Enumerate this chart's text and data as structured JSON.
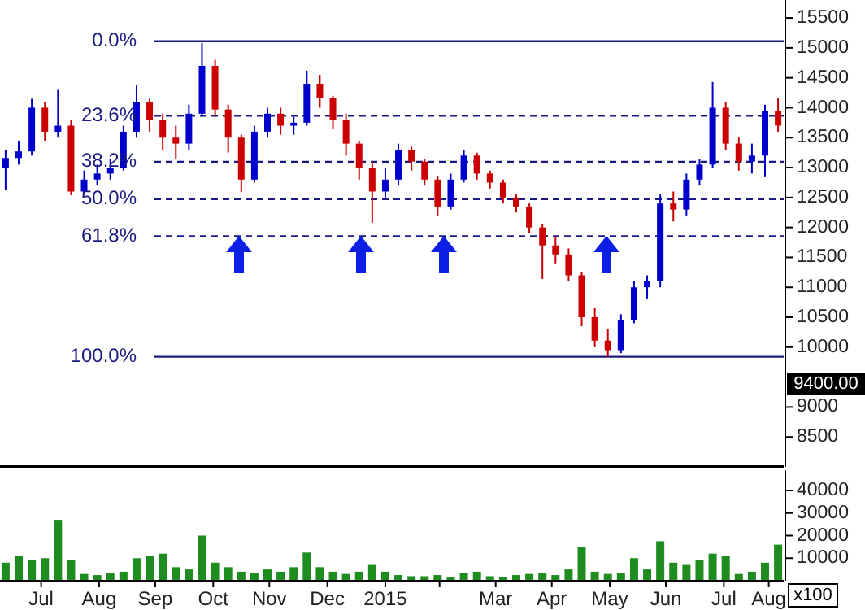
{
  "chart_data": [
    {
      "type": "candlestick",
      "xlim": [
        "2014-06-24",
        "2015-08-17"
      ],
      "ylim": [
        8000,
        15800
      ],
      "yticks": [
        8500,
        9000,
        10000,
        10500,
        11000,
        11500,
        12000,
        12500,
        13000,
        13500,
        14000,
        14500,
        15000,
        15500
      ],
      "tick_labels": "y",
      "x": [
        "2014-06-27",
        "2014-07-04",
        "2014-07-11",
        "2014-07-18",
        "2014-07-25",
        "2014-08-01",
        "2014-08-08",
        "2014-08-15",
        "2014-08-22",
        "2014-08-29",
        "2014-09-05",
        "2014-09-12",
        "2014-09-19",
        "2014-09-26",
        "2014-10-03",
        "2014-10-10",
        "2014-10-17",
        "2014-10-24",
        "2014-10-31",
        "2014-11-07",
        "2014-11-14",
        "2014-11-21",
        "2014-11-28",
        "2014-12-05",
        "2014-12-12",
        "2014-12-19",
        "2014-12-26",
        "2015-01-02",
        "2015-01-09",
        "2015-01-16",
        "2015-01-23",
        "2015-01-30",
        "2015-02-06",
        "2015-02-13",
        "2015-02-20",
        "2015-02-27",
        "2015-03-06",
        "2015-03-13",
        "2015-03-20",
        "2015-03-27",
        "2015-04-03",
        "2015-04-10",
        "2015-04-17",
        "2015-04-24",
        "2015-05-01",
        "2015-05-08",
        "2015-05-15",
        "2015-05-22",
        "2015-05-29",
        "2015-06-05",
        "2015-06-12",
        "2015-06-19",
        "2015-06-26",
        "2015-07-03",
        "2015-07-10",
        "2015-07-17",
        "2015-07-24",
        "2015-07-31",
        "2015-08-07",
        "2015-08-14"
      ],
      "ohlc": [
        [
          13000,
          13300,
          12620,
          13160
        ],
        [
          13160,
          13450,
          13050,
          13270
        ],
        [
          13270,
          14150,
          13200,
          14000
        ],
        [
          14000,
          14100,
          13450,
          13600
        ],
        [
          13600,
          14300,
          13500,
          13700
        ],
        [
          13700,
          13800,
          12540,
          12600
        ],
        [
          12600,
          12950,
          12550,
          12800
        ],
        [
          12800,
          13050,
          12700,
          12900
        ],
        [
          12900,
          13150,
          12800,
          13000
        ],
        [
          13000,
          13700,
          12950,
          13600
        ],
        [
          13600,
          14380,
          13500,
          14100
        ],
        [
          14100,
          14150,
          13600,
          13800
        ],
        [
          13800,
          13900,
          13300,
          13500
        ],
        [
          13500,
          13700,
          13150,
          13400
        ],
        [
          13400,
          14050,
          13300,
          13900
        ],
        [
          13900,
          15080,
          13850,
          14700
        ],
        [
          14700,
          14800,
          13850,
          13970
        ],
        [
          13970,
          14050,
          13250,
          13500
        ],
        [
          13500,
          13550,
          12590,
          12800
        ],
        [
          12800,
          13700,
          12750,
          13600
        ],
        [
          13600,
          14000,
          13500,
          13900
        ],
        [
          13900,
          14000,
          13550,
          13700
        ],
        [
          13700,
          13850,
          13550,
          13750
        ],
        [
          13750,
          14620,
          13700,
          14400
        ],
        [
          14400,
          14550,
          14000,
          14160
        ],
        [
          14160,
          14200,
          13650,
          13800
        ],
        [
          13800,
          13900,
          13200,
          13400
        ],
        [
          13400,
          13450,
          12800,
          13000
        ],
        [
          13000,
          13100,
          12080,
          12600
        ],
        [
          12600,
          13000,
          12500,
          12800
        ],
        [
          12800,
          13400,
          12700,
          13300
        ],
        [
          13300,
          13350,
          12950,
          13100
        ],
        [
          13100,
          13150,
          12700,
          12800
        ],
        [
          12800,
          12850,
          12190,
          12350
        ],
        [
          12350,
          12900,
          12300,
          12800
        ],
        [
          12800,
          13300,
          12750,
          13200
        ],
        [
          13200,
          13250,
          12800,
          12900
        ],
        [
          12900,
          12950,
          12650,
          12750
        ],
        [
          12750,
          12800,
          12400,
          12500
        ],
        [
          12500,
          12550,
          12250,
          12350
        ],
        [
          12350,
          12400,
          11900,
          12000
        ],
        [
          12000,
          12050,
          11140,
          11700
        ],
        [
          11700,
          11850,
          11400,
          11550
        ],
        [
          11550,
          11650,
          11100,
          11200
        ],
        [
          11200,
          11250,
          10350,
          10500
        ],
        [
          10500,
          10650,
          10000,
          10110
        ],
        [
          10110,
          10300,
          9840,
          9950
        ],
        [
          9950,
          10550,
          9900,
          10450
        ],
        [
          10450,
          11100,
          10400,
          11000
        ],
        [
          11000,
          11200,
          10800,
          11100
        ],
        [
          11100,
          12550,
          11000,
          12400
        ],
        [
          12400,
          12600,
          12100,
          12300
        ],
        [
          12300,
          12900,
          12200,
          12800
        ],
        [
          12800,
          13150,
          12700,
          13050
        ],
        [
          13050,
          14430,
          13000,
          14000
        ],
        [
          14000,
          14100,
          13300,
          13400
        ],
        [
          13400,
          13500,
          12950,
          13100
        ],
        [
          13100,
          13400,
          12900,
          13200
        ],
        [
          13200,
          14050,
          12840,
          13950
        ],
        [
          13950,
          14160,
          13600,
          13700
        ]
      ],
      "colors": [
        "#0000cc",
        "#0000cc",
        "#0000cc",
        "#cc0000",
        "#0000cc",
        "#cc0000",
        "#0000cc",
        "#0000cc",
        "#0000cc",
        "#0000cc",
        "#0000cc",
        "#cc0000",
        "#cc0000",
        "#cc0000",
        "#0000cc",
        "#0000cc",
        "#cc0000",
        "#cc0000",
        "#cc0000",
        "#0000cc",
        "#0000cc",
        "#cc0000",
        "#0000cc",
        "#0000cc",
        "#cc0000",
        "#cc0000",
        "#cc0000",
        "#cc0000",
        "#cc0000",
        "#0000cc",
        "#0000cc",
        "#cc0000",
        "#cc0000",
        "#cc0000",
        "#0000cc",
        "#0000cc",
        "#cc0000",
        "#cc0000",
        "#cc0000",
        "#cc0000",
        "#cc0000",
        "#cc0000",
        "#cc0000",
        "#cc0000",
        "#cc0000",
        "#cc0000",
        "#cc0000",
        "#0000cc",
        "#0000cc",
        "#0000cc",
        "#0000cc",
        "#cc0000",
        "#0000cc",
        "#0000cc",
        "#0000cc",
        "#cc0000",
        "#cc0000",
        "#0000cc",
        "#0000cc",
        "#cc0000"
      ],
      "ref_lines": [
        {
          "axis": "y",
          "value": 15110,
          "color": "#1a1a80",
          "line_style": "solid"
        },
        {
          "axis": "y",
          "value": 13866,
          "color": "#1a1a80",
          "line_style": "dashed"
        },
        {
          "axis": "y",
          "value": 13097,
          "color": "#1a1a80",
          "line_style": "dashed"
        },
        {
          "axis": "y",
          "value": 12475,
          "color": "#1a1a80",
          "line_style": "dashed"
        },
        {
          "axis": "y",
          "value": 11853,
          "color": "#1a1a80",
          "line_style": "dashed"
        },
        {
          "axis": "y",
          "value": 9840,
          "color": "#1a1a80",
          "line_style": "solid"
        }
      ],
      "annotations": [
        "0.0%",
        "23.6%",
        "38.2%",
        "50.0%",
        "61.8%",
        "100.0%",
        "9400.00"
      ]
    },
    {
      "type": "bar",
      "xlim": [
        "2014-06-24",
        "2015-08-17"
      ],
      "ylim": [
        0,
        49000
      ],
      "yticks": [
        10000,
        20000,
        30000,
        40000
      ],
      "ylabel": "x100",
      "color": "#1e8c1e",
      "x": [
        "2014-06-27",
        "2014-07-04",
        "2014-07-11",
        "2014-07-18",
        "2014-07-25",
        "2014-08-01",
        "2014-08-08",
        "2014-08-15",
        "2014-08-22",
        "2014-08-29",
        "2014-09-05",
        "2014-09-12",
        "2014-09-19",
        "2014-09-26",
        "2014-10-03",
        "2014-10-10",
        "2014-10-17",
        "2014-10-24",
        "2014-10-31",
        "2014-11-07",
        "2014-11-14",
        "2014-11-21",
        "2014-11-28",
        "2014-12-05",
        "2014-12-12",
        "2014-12-19",
        "2014-12-26",
        "2015-01-02",
        "2015-01-09",
        "2015-01-16",
        "2015-01-23",
        "2015-01-30",
        "2015-02-06",
        "2015-02-13",
        "2015-02-20",
        "2015-02-27",
        "2015-03-06",
        "2015-03-13",
        "2015-03-20",
        "2015-03-27",
        "2015-04-03",
        "2015-04-10",
        "2015-04-17",
        "2015-04-24",
        "2015-05-01",
        "2015-05-08",
        "2015-05-15",
        "2015-05-22",
        "2015-05-29",
        "2015-06-05",
        "2015-06-12",
        "2015-06-19",
        "2015-06-26",
        "2015-07-03",
        "2015-07-10",
        "2015-07-17",
        "2015-07-24",
        "2015-07-31",
        "2015-08-07",
        "2015-08-14"
      ],
      "values": [
        8000,
        11000,
        9000,
        10000,
        27000,
        9000,
        3000,
        2500,
        3500,
        4000,
        10000,
        11000,
        12000,
        6000,
        5000,
        20000,
        8000,
        6000,
        4000,
        3500,
        5000,
        4000,
        6000,
        12500,
        6000,
        4000,
        3000,
        4000,
        7000,
        4000,
        2500,
        2000,
        2000,
        2500,
        1500,
        3500,
        4000,
        2000,
        1500,
        2500,
        3000,
        3500,
        2500,
        5000,
        15000,
        4000,
        3000,
        3500,
        10000,
        5000,
        17500,
        8000,
        7000,
        9000,
        12000,
        11000,
        3000,
        4000,
        8000,
        16000
      ],
      "xticks": [
        {
          "value": "2014-07-16",
          "label": "Jul"
        },
        {
          "value": "2014-08-16",
          "label": "Aug"
        },
        {
          "value": "2014-09-15",
          "label": "Sep"
        },
        {
          "value": "2014-10-16",
          "label": "Oct"
        },
        {
          "value": "2014-11-15",
          "label": "Nov"
        },
        {
          "value": "2014-12-16",
          "label": "Dec"
        },
        {
          "value": "2015-01-16",
          "label": "2015"
        },
        {
          "value": "2015-02-14",
          "label": null
        },
        {
          "value": "2015-03-16",
          "label": "Mar"
        },
        {
          "value": "2015-04-15",
          "label": "Apr"
        },
        {
          "value": "2015-05-16",
          "label": "May"
        },
        {
          "value": "2015-06-15",
          "label": "Jun"
        },
        {
          "value": "2015-07-16",
          "label": "Jul"
        },
        {
          "value": "2015-08-09",
          "label": "Aug"
        }
      ]
    }
  ]
}
